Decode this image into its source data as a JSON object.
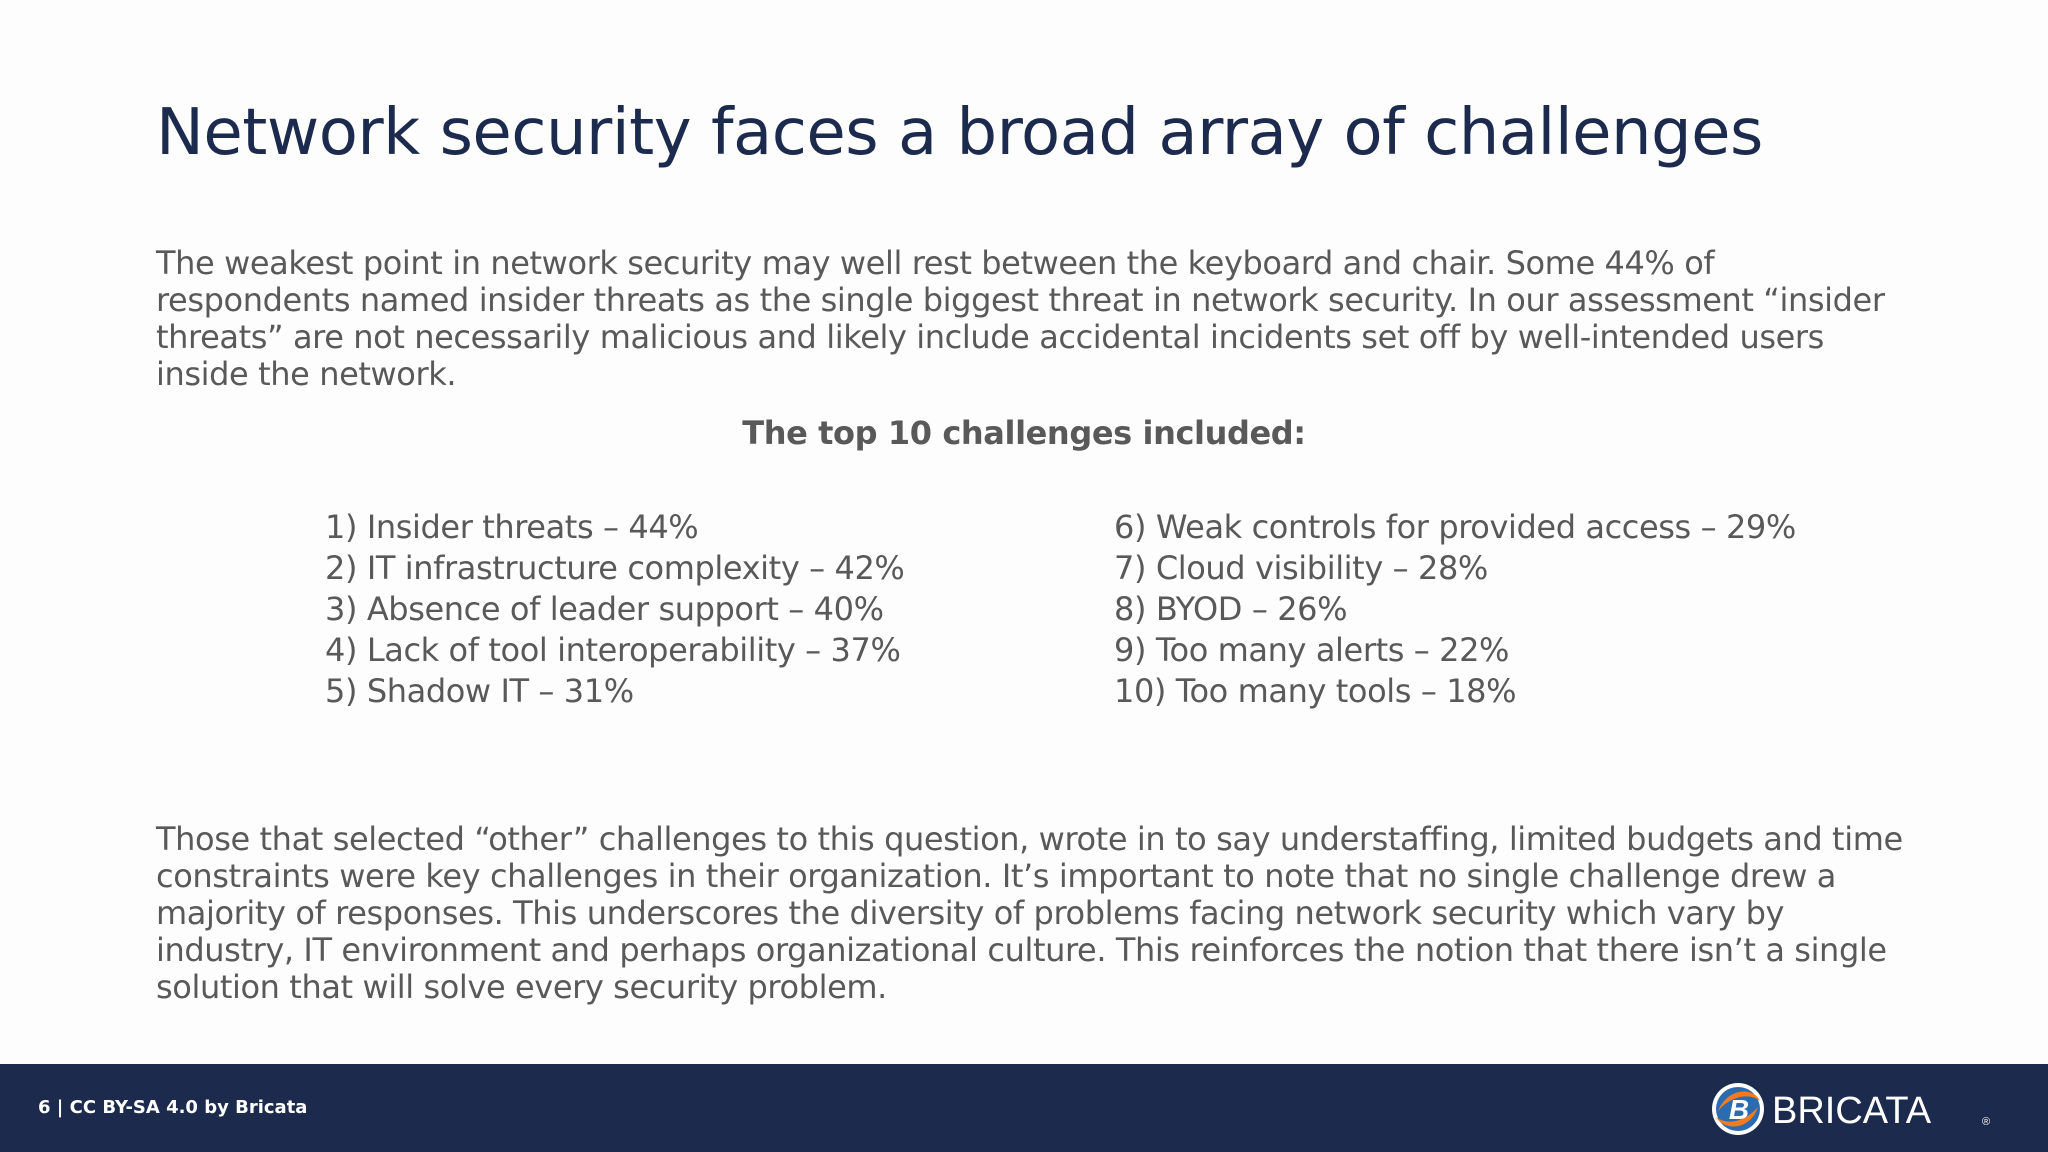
{
  "slide": {
    "title": "Network security faces a broad array of challenges",
    "intro": "The weakest point in network security may well rest between the keyboard and chair. Some 44% of respondents named insider threats as the single biggest threat in network security. In our assessment “insider threats” are not necessarily malicious and likely include accidental incidents set off by well-intended users inside the network.",
    "subheading": "The top 10 challenges included:",
    "challenges_left": [
      "1) Insider threats – 44%",
      "2) IT infrastructure complexity – 42%",
      "3) Absence of leader support – 40%",
      "4) Lack of tool interoperability – 37%",
      "5) Shadow IT – 31%"
    ],
    "challenges_right": [
      "6) Weak controls for provided access – 29%",
      "7) Cloud visibility – 28%",
      "8) BYOD – 26%",
      "9) Too many alerts – 22%",
      "10) Too many tools – 18%"
    ],
    "outro": "Those that selected “other” challenges to this question, wrote in to say understaffing, limited budgets and time constraints were key challenges in their organization. It’s important to note that no single challenge drew a majority of responses. This underscores the diversity of problems facing network security which vary by industry, IT environment and perhaps organizational culture. This reinforces the notion that there isn’t a single solution that will solve every security problem."
  },
  "footer": {
    "text": "6 | CC BY-SA 4.0 by Bricata",
    "logo_text": "BRICATA",
    "logo_mark": "®"
  },
  "colors": {
    "title": "#1c2a4d",
    "body_text": "#595959",
    "footer_bg": "#1c2a4d",
    "logo_orange": "#f47a20",
    "logo_blue": "#2b6cb0"
  }
}
